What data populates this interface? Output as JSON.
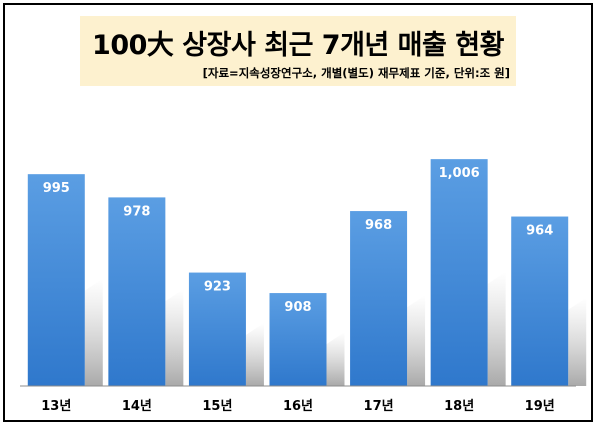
{
  "chart_data": {
    "type": "bar",
    "title": "100大 상장사 최근 7개년 매출 현황",
    "subtitle": "[자료=지속성장연구소, 개별(별도) 재무제표 기준, 단위:조 원]",
    "categories": [
      "13년",
      "14년",
      "15년",
      "16년",
      "17년",
      "18년",
      "19년"
    ],
    "values": [
      995,
      978,
      923,
      908,
      968,
      1006,
      964
    ],
    "data_labels": [
      "995",
      "978",
      "923",
      "908",
      "968",
      "1,006",
      "964"
    ],
    "xlabel": "",
    "ylabel": "",
    "ylim": [
      840,
      1020
    ],
    "grid": false,
    "legend": "none",
    "bar_color": "#3f86d6"
  }
}
